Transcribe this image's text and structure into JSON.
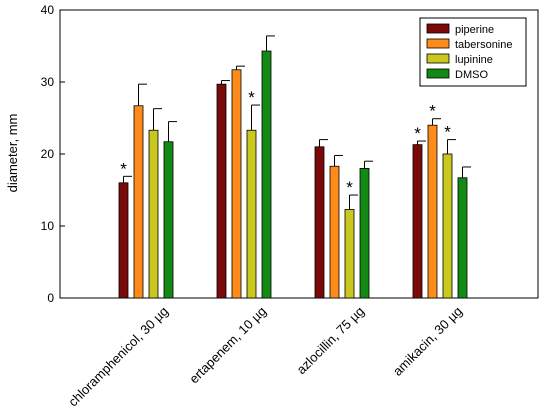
{
  "chart_data": {
    "type": "bar",
    "title": "",
    "xlabel": "",
    "ylabel": "diameter, mm",
    "ylim": [
      0,
      40
    ],
    "yticks": [
      0,
      10,
      20,
      30,
      40
    ],
    "categories": [
      "chloramphenicol, 30 µg",
      "ertapenem, 10 µg",
      "azlocillin, 75 µg",
      "amikacin, 30 µg"
    ],
    "series": [
      {
        "name": "piperine",
        "color": "#7a0a0a",
        "values": [
          16.0,
          29.7,
          21.0,
          21.3
        ],
        "errors": [
          0.9,
          0.5,
          1.0,
          0.5
        ],
        "significant": [
          true,
          false,
          false,
          true
        ]
      },
      {
        "name": "tabersonine",
        "color": "#ff8c1a",
        "values": [
          26.7,
          31.7,
          18.3,
          24.0
        ],
        "errors": [
          3.0,
          0.5,
          1.5,
          0.9
        ],
        "significant": [
          false,
          false,
          false,
          true
        ]
      },
      {
        "name": "lupinine",
        "color": "#c8c81e",
        "values": [
          23.3,
          23.3,
          12.3,
          20.0
        ],
        "errors": [
          3.0,
          3.5,
          2.0,
          2.0
        ],
        "significant": [
          false,
          true,
          true,
          true
        ]
      },
      {
        "name": "DMSO",
        "color": "#138a13",
        "values": [
          21.7,
          34.3,
          18.0,
          16.7
        ],
        "errors": [
          2.8,
          2.1,
          1.0,
          1.5
        ],
        "significant": [
          false,
          false,
          false,
          false
        ]
      }
    ],
    "significance_marker": "*",
    "legend_position": "top-right",
    "grid": false
  }
}
